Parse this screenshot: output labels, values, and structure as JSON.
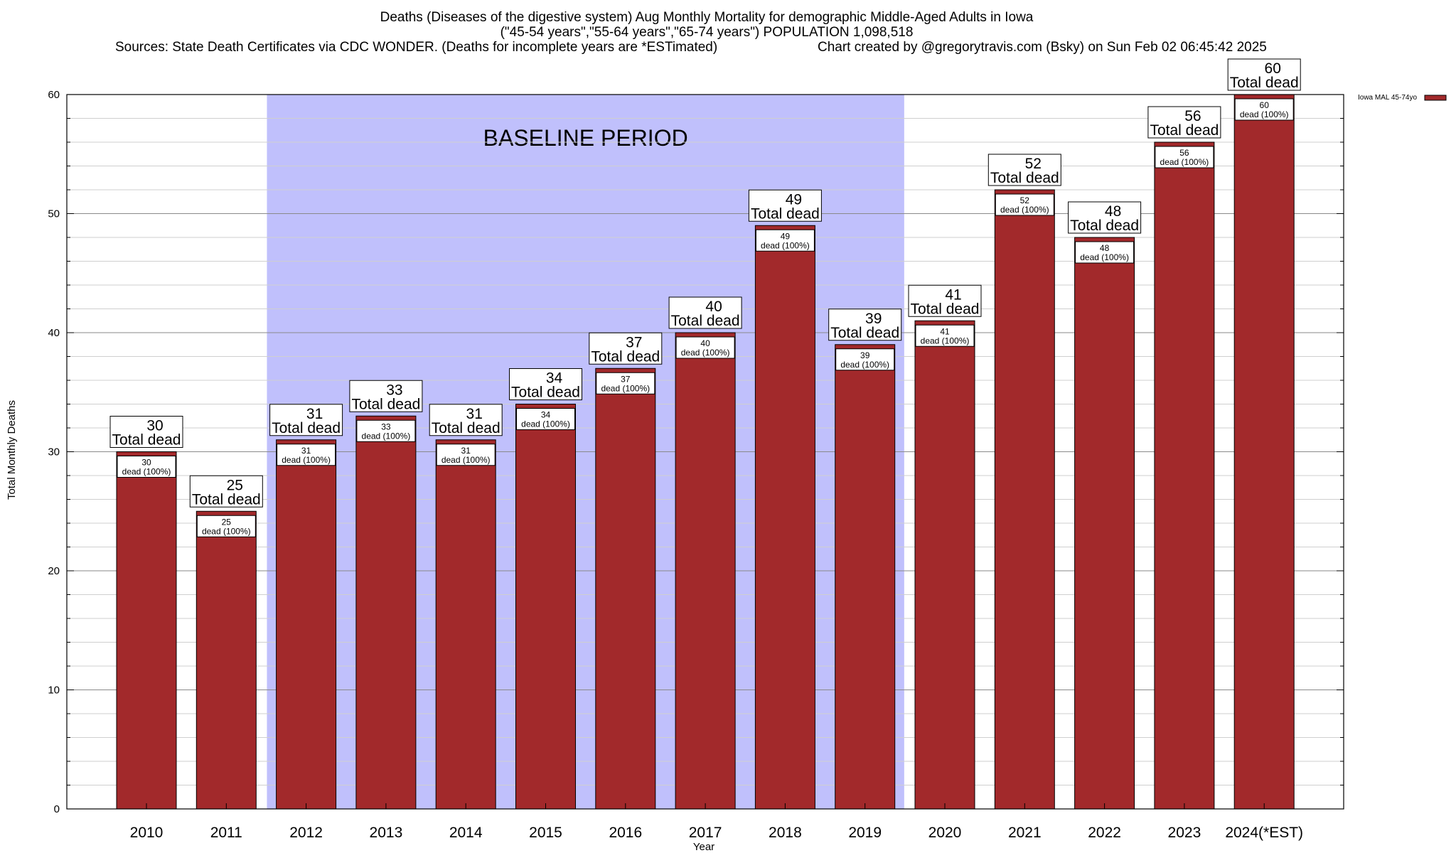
{
  "header": {
    "line1": "Deaths (Diseases of the digestive system) Aug Monthly Mortality for demographic Middle-Aged Adults in Iowa",
    "line2": "(\"45-54 years\",\"55-64 years\",\"65-74 years\") POPULATION 1,098,518",
    "sources": "Sources: State Death Certificates via CDC WONDER. (Deaths for incomplete years are *ESTimated)",
    "credit": "Chart created by @gregorytravis.com (Bsky) on Sun Feb 02 06:45:42 2025"
  },
  "chart_data": {
    "type": "bar",
    "xlabel": "Year",
    "ylabel": "Total Monthly Deaths",
    "ylim": [
      0,
      60
    ],
    "yticks": [
      0,
      10,
      20,
      30,
      40,
      50,
      60
    ],
    "grid": true,
    "legend_position": "top-right",
    "categories": [
      "2010",
      "2011",
      "2012",
      "2013",
      "2014",
      "2015",
      "2016",
      "2017",
      "2018",
      "2019",
      "2020",
      "2021",
      "2022",
      "2023",
      "2024(*EST)"
    ],
    "series": [
      {
        "name": "Iowa MAL 45-74yo",
        "color": "#a2292b",
        "values": [
          30,
          25,
          31,
          33,
          31,
          34,
          37,
          40,
          49,
          39,
          41,
          52,
          48,
          56,
          60
        ]
      }
    ],
    "top_label_suffix": "Total dead",
    "inner_label_suffix": "dead (100%)",
    "shaded_region": {
      "label": "BASELINE PERIOD",
      "from_category": "2012",
      "to_category": "2019",
      "color": "#c0c0fc"
    }
  }
}
